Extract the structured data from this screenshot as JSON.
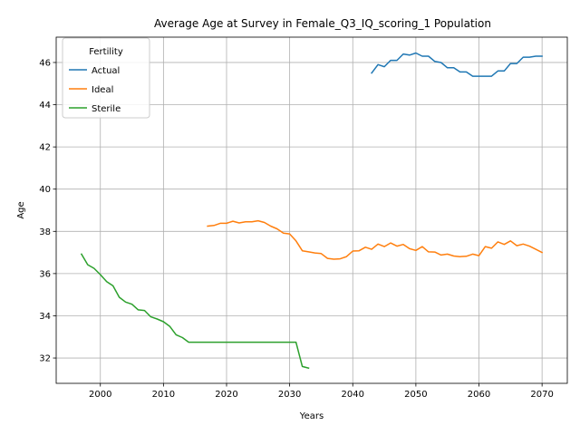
{
  "chart_data": {
    "type": "line",
    "title": "Average Age at Survey in Female_Q3_IQ_scoring_1 Population",
    "xlabel": "Years",
    "ylabel": "Age",
    "xlim": [
      1993,
      2074
    ],
    "ylim": [
      30.8,
      47.2
    ],
    "xticks": [
      2000,
      2010,
      2020,
      2030,
      2040,
      2050,
      2060,
      2070
    ],
    "yticks": [
      32,
      34,
      36,
      38,
      40,
      42,
      44,
      46
    ],
    "grid": true,
    "legend": {
      "title": "Fertility",
      "position": "upper-left"
    },
    "series": [
      {
        "name": "Actual",
        "color": "#1f77b4",
        "x": [
          2043,
          2044,
          2045,
          2046,
          2047,
          2048,
          2049,
          2050,
          2051,
          2052,
          2053,
          2054,
          2055,
          2056,
          2057,
          2058,
          2059,
          2060,
          2061,
          2062,
          2063,
          2064,
          2065,
          2066,
          2067,
          2068,
          2069,
          2070
        ],
        "y": [
          45.5,
          45.9,
          45.8,
          46.1,
          46.1,
          46.4,
          46.35,
          46.45,
          46.3,
          46.3,
          46.05,
          46.0,
          45.75,
          45.75,
          45.55,
          45.55,
          45.35,
          45.35,
          45.35,
          45.35,
          45.6,
          45.6,
          45.95,
          45.95,
          46.25,
          46.25,
          46.3,
          46.3
        ]
      },
      {
        "name": "Ideal",
        "color": "#ff7f0e",
        "x": [
          2017,
          2018,
          2019,
          2020,
          2021,
          2022,
          2023,
          2024,
          2025,
          2026,
          2027,
          2028,
          2029,
          2030,
          2031,
          2032,
          2033,
          2034,
          2035,
          2036,
          2037,
          2038,
          2039,
          2040,
          2041,
          2042,
          2043,
          2044,
          2045,
          2046,
          2047,
          2048,
          2049,
          2050,
          2051,
          2052,
          2053,
          2054,
          2055,
          2056,
          2057,
          2058,
          2059,
          2060,
          2061,
          2062,
          2063,
          2064,
          2065,
          2066,
          2067,
          2068,
          2069,
          2070
        ],
        "y": [
          38.25,
          38.28,
          38.38,
          38.38,
          38.48,
          38.4,
          38.45,
          38.45,
          38.5,
          38.42,
          38.25,
          38.12,
          37.92,
          37.88,
          37.55,
          37.08,
          37.03,
          36.98,
          36.95,
          36.72,
          36.68,
          36.7,
          36.8,
          37.07,
          37.08,
          37.25,
          37.15,
          37.4,
          37.28,
          37.45,
          37.3,
          37.38,
          37.18,
          37.1,
          37.28,
          37.03,
          37.02,
          36.88,
          36.92,
          36.83,
          36.8,
          36.82,
          36.92,
          36.85,
          37.28,
          37.2,
          37.5,
          37.38,
          37.55,
          37.32,
          37.4,
          37.3,
          37.15,
          37.0
        ]
      },
      {
        "name": "Sterile",
        "color": "#2ca02c",
        "x": [
          1997,
          1998,
          1999,
          2000,
          2001,
          2002,
          2003,
          2004,
          2005,
          2006,
          2007,
          2008,
          2009,
          2010,
          2011,
          2012,
          2013,
          2014,
          2015,
          2016,
          2017,
          2018,
          2019,
          2020,
          2021,
          2022,
          2023,
          2024,
          2025,
          2026,
          2027,
          2028,
          2029,
          2030,
          2031,
          2032,
          2033
        ],
        "y": [
          36.92,
          36.42,
          36.25,
          35.95,
          35.62,
          35.42,
          34.88,
          34.65,
          34.55,
          34.28,
          34.25,
          33.95,
          33.85,
          33.72,
          33.5,
          33.1,
          32.97,
          32.75,
          32.75,
          32.75,
          32.75,
          32.75,
          32.75,
          32.75,
          32.75,
          32.75,
          32.75,
          32.75,
          32.75,
          32.75,
          32.75,
          32.75,
          32.75,
          32.75,
          32.75,
          31.6,
          31.52
        ]
      }
    ]
  }
}
